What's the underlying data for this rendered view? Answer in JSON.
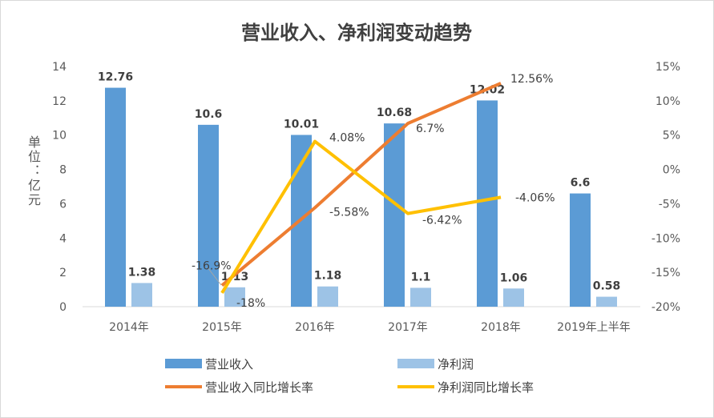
{
  "chart_data": {
    "type": "bar+line",
    "title": "营业收入、净利润变动趋势",
    "ylabel": "单位：亿元",
    "categories": [
      "2014年",
      "2015年",
      "2016年",
      "2017年",
      "2018年",
      "2019年上半年"
    ],
    "ylim": [
      0,
      14
    ],
    "yticks": [
      "0",
      "2",
      "4",
      "6",
      "8",
      "10",
      "12",
      "14"
    ],
    "y2lim": [
      -20,
      15
    ],
    "y2ticks": [
      "-20%",
      "-15%",
      "-10%",
      "-5%",
      "0%",
      "5%",
      "10%",
      "15%"
    ],
    "series": [
      {
        "name": "营业收入",
        "type": "bar",
        "axis": "left",
        "color": "#5B9BD5",
        "values": [
          12.76,
          10.6,
          10.01,
          10.68,
          12.02,
          6.6
        ],
        "labels": [
          "12.76",
          "10.6",
          "10.01",
          "10.68",
          "12.02",
          "6.6"
        ]
      },
      {
        "name": "净利润",
        "type": "bar",
        "axis": "left",
        "color": "#9DC3E6",
        "values": [
          1.38,
          1.13,
          1.18,
          1.1,
          1.06,
          0.58
        ],
        "labels": [
          "1.38",
          "1.13",
          "1.18",
          "1.1",
          "1.06",
          "0.58"
        ]
      },
      {
        "name": "营业收入同比增长率",
        "type": "line",
        "axis": "right",
        "color": "#ED7D31",
        "values": [
          null,
          -16.9,
          -5.58,
          6.7,
          12.56,
          null
        ],
        "labels": [
          "",
          "-16.9%",
          "-5.58%",
          "6.7%",
          "12.56%",
          ""
        ]
      },
      {
        "name": "净利润同比增长率",
        "type": "line",
        "axis": "right",
        "color": "#FFC000",
        "values": [
          null,
          -18,
          4.08,
          -6.42,
          -4.06,
          null
        ],
        "labels": [
          "",
          "-18%",
          "4.08%",
          "-6.42%",
          "-4.06%",
          ""
        ]
      }
    ],
    "legend": "bottom"
  }
}
